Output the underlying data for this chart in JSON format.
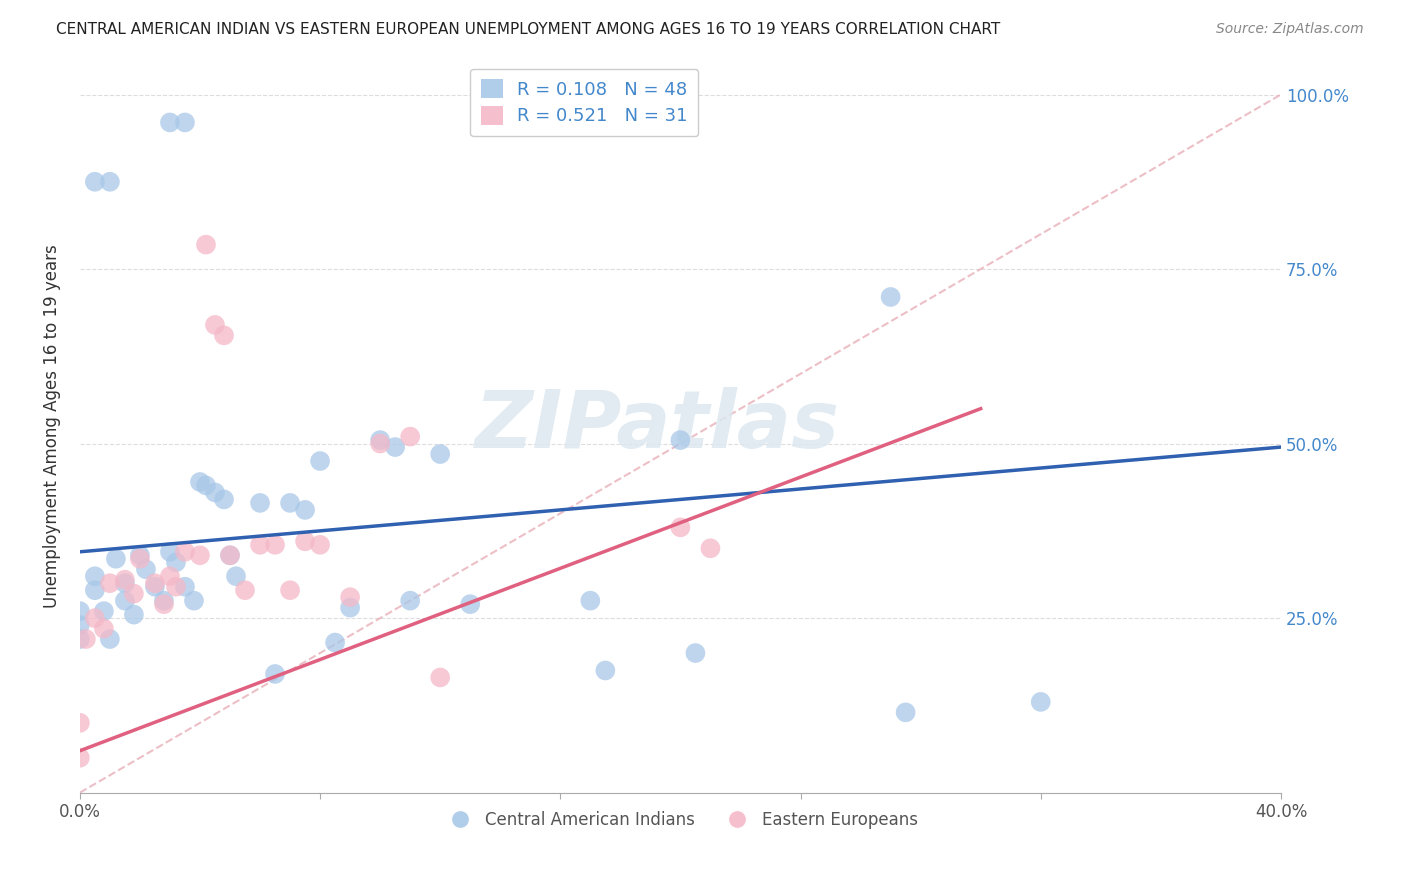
{
  "title": "CENTRAL AMERICAN INDIAN VS EASTERN EUROPEAN UNEMPLOYMENT AMONG AGES 16 TO 19 YEARS CORRELATION CHART",
  "source": "Source: ZipAtlas.com",
  "ylabel": "Unemployment Among Ages 16 to 19 years",
  "xlim": [
    0.0,
    0.4
  ],
  "ylim": [
    0.0,
    1.05
  ],
  "blue_R": 0.108,
  "blue_N": 48,
  "pink_R": 0.521,
  "pink_N": 31,
  "blue_color": "#a8c8e8",
  "pink_color": "#f4b8c8",
  "blue_line_color": "#3060b0",
  "pink_line_color": "#e06080",
  "diag_line_color": "#e8b0b8",
  "legend_label_blue": "Central American Indians",
  "legend_label_pink": "Eastern Europeans",
  "watermark": "ZIPatlas",
  "blue_scatter_x": [
    0.03,
    0.035,
    0.005,
    0.01,
    0.0,
    0.0,
    0.0,
    0.005,
    0.005,
    0.008,
    0.01,
    0.012,
    0.015,
    0.015,
    0.018,
    0.02,
    0.022,
    0.025,
    0.028,
    0.03,
    0.032,
    0.035,
    0.038,
    0.04,
    0.042,
    0.045,
    0.048,
    0.05,
    0.052,
    0.06,
    0.065,
    0.07,
    0.075,
    0.08,
    0.085,
    0.09,
    0.1,
    0.105,
    0.11,
    0.12,
    0.13,
    0.17,
    0.175,
    0.2,
    0.205,
    0.27,
    0.275,
    0.32
  ],
  "blue_scatter_y": [
    0.96,
    0.96,
    0.875,
    0.875,
    0.26,
    0.24,
    0.22,
    0.29,
    0.31,
    0.26,
    0.22,
    0.335,
    0.3,
    0.275,
    0.255,
    0.34,
    0.32,
    0.295,
    0.275,
    0.345,
    0.33,
    0.295,
    0.275,
    0.445,
    0.44,
    0.43,
    0.42,
    0.34,
    0.31,
    0.415,
    0.17,
    0.415,
    0.405,
    0.475,
    0.215,
    0.265,
    0.505,
    0.495,
    0.275,
    0.485,
    0.27,
    0.275,
    0.175,
    0.505,
    0.2,
    0.71,
    0.115,
    0.13
  ],
  "pink_scatter_x": [
    0.0,
    0.0,
    0.002,
    0.005,
    0.008,
    0.01,
    0.015,
    0.018,
    0.02,
    0.025,
    0.028,
    0.03,
    0.032,
    0.035,
    0.04,
    0.042,
    0.045,
    0.048,
    0.05,
    0.055,
    0.06,
    0.065,
    0.07,
    0.075,
    0.08,
    0.09,
    0.1,
    0.11,
    0.12,
    0.2,
    0.21
  ],
  "pink_scatter_y": [
    0.1,
    0.05,
    0.22,
    0.25,
    0.235,
    0.3,
    0.305,
    0.285,
    0.335,
    0.3,
    0.27,
    0.31,
    0.295,
    0.345,
    0.34,
    0.785,
    0.67,
    0.655,
    0.34,
    0.29,
    0.355,
    0.355,
    0.29,
    0.36,
    0.355,
    0.28,
    0.5,
    0.51,
    0.165,
    0.38,
    0.35
  ],
  "blue_line_x": [
    0.0,
    0.4
  ],
  "blue_line_y": [
    0.345,
    0.495
  ],
  "pink_line_x": [
    0.0,
    0.3
  ],
  "pink_line_y": [
    0.06,
    0.55
  ],
  "diag_line_x": [
    0.0,
    0.4
  ],
  "diag_line_y": [
    0.0,
    1.0
  ]
}
